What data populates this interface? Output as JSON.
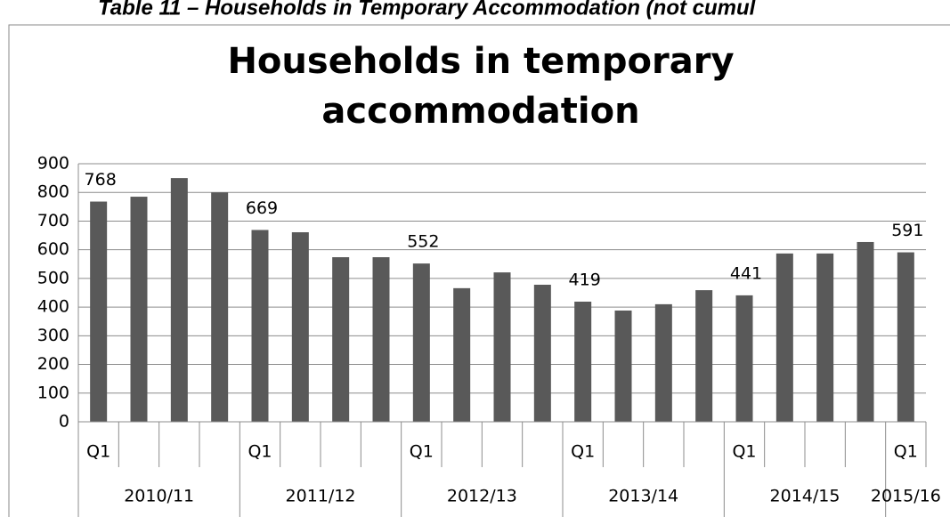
{
  "header": "Table 11 – Households in Temporary Accommodation (not cumul",
  "chart_data": {
    "type": "bar",
    "title": [
      "Households in temporary",
      "accommodation"
    ],
    "categories": [
      "Q1",
      null,
      null,
      null,
      "Q1",
      null,
      null,
      null,
      "Q1",
      null,
      null,
      null,
      "Q1",
      null,
      null,
      null,
      "Q1",
      null,
      null,
      null,
      "Q1"
    ],
    "groups": [
      {
        "label": "2010/11",
        "count": 4
      },
      {
        "label": "2011/12",
        "count": 4
      },
      {
        "label": "2012/13",
        "count": 4
      },
      {
        "label": "2013/14",
        "count": 4
      },
      {
        "label": "2014/15",
        "count": 4
      },
      {
        "label": "2015/16",
        "count": 1
      }
    ],
    "values": [
      768,
      785,
      850,
      800,
      669,
      661,
      574,
      574,
      552,
      466,
      521,
      478,
      419,
      388,
      410,
      459,
      441,
      587,
      587,
      627,
      591
    ],
    "value_labels": [
      768,
      null,
      null,
      null,
      669,
      null,
      null,
      null,
      552,
      null,
      null,
      null,
      419,
      null,
      null,
      null,
      441,
      null,
      null,
      null,
      591
    ],
    "color": "#595959",
    "ylim": [
      0,
      900
    ],
    "yticks": [
      0,
      100,
      200,
      300,
      400,
      500,
      600,
      700,
      800,
      900
    ],
    "grid": true
  }
}
